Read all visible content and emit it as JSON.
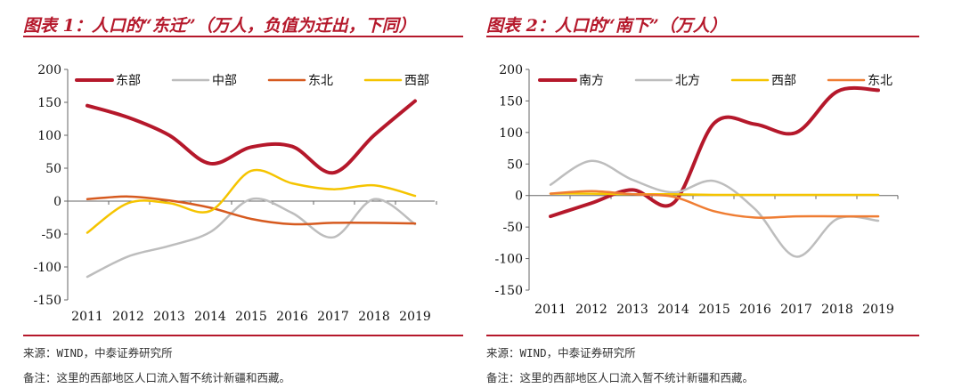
{
  "panels": [
    {
      "title": "图表 1：人口的“东迁”（万人，负值为迁出，下同）",
      "source": "来源：WIND，中泰证券研究所",
      "remark": "备注：这里的西部地区人口流入暂不统计新疆和西藏。"
    },
    {
      "title": "图表 2：人口的“南下”（万人）",
      "source": "来源：WIND，中泰证券研究所",
      "remark": "备注：这里的西部地区人口流入暂不统计新疆和西藏。"
    }
  ],
  "chart_data": [
    {
      "type": "line",
      "categories": [
        "2011",
        "2012",
        "2013",
        "2014",
        "2015",
        "2016",
        "2017",
        "2018",
        "2019"
      ],
      "ylim": [
        -150,
        200
      ],
      "yticks": [
        -150,
        -100,
        -50,
        0,
        50,
        100,
        150,
        200
      ],
      "legend_position": "top",
      "series": [
        {
          "name": "东部",
          "color": "#b5182b",
          "width": 4,
          "values": [
            145,
            127,
            100,
            57,
            82,
            83,
            43,
            100,
            152
          ]
        },
        {
          "name": "中部",
          "color": "#bdbdbd",
          "width": 2.5,
          "values": [
            -115,
            -84,
            -68,
            -47,
            3,
            -18,
            -55,
            3,
            -35
          ]
        },
        {
          "name": "东北",
          "color": "#d65a1f",
          "width": 2.5,
          "values": [
            3,
            7,
            1,
            -10,
            -27,
            -35,
            -33,
            -33,
            -34
          ]
        },
        {
          "name": "西部",
          "color": "#f5c400",
          "width": 2.5,
          "values": [
            -48,
            -3,
            -3,
            -15,
            46,
            27,
            18,
            24,
            8
          ]
        }
      ]
    },
    {
      "type": "line",
      "categories": [
        "2011",
        "2012",
        "2013",
        "2014",
        "2015",
        "2016",
        "2017",
        "2018",
        "2019"
      ],
      "ylim": [
        -150,
        200
      ],
      "yticks": [
        -150,
        -100,
        -50,
        0,
        50,
        100,
        150,
        200
      ],
      "legend_position": "top",
      "series": [
        {
          "name": "南方",
          "color": "#b5182b",
          "width": 4,
          "values": [
            -33,
            -12,
            9,
            -12,
            115,
            113,
            100,
            165,
            167
          ]
        },
        {
          "name": "北方",
          "color": "#bdbdbd",
          "width": 2.5,
          "values": [
            17,
            55,
            25,
            5,
            23,
            -22,
            -97,
            -37,
            -40
          ]
        },
        {
          "name": "西部",
          "color": "#f5c400",
          "width": 2.5,
          "values": [
            3,
            3,
            2,
            2,
            1,
            1,
            1,
            1,
            1
          ]
        },
        {
          "name": "东北",
          "color": "#ef7d33",
          "width": 2.5,
          "values": [
            3,
            7,
            2,
            -2,
            -25,
            -35,
            -33,
            -33,
            -33
          ]
        }
      ]
    }
  ]
}
